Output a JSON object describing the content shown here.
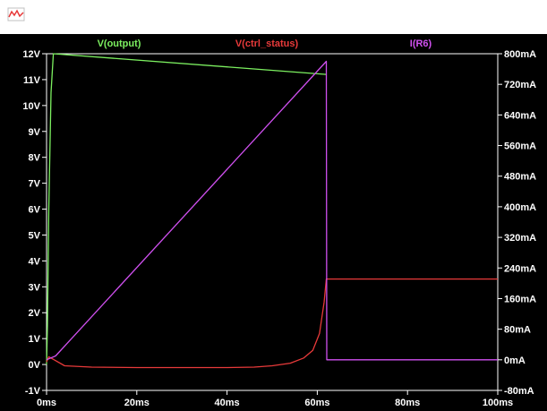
{
  "window": {
    "title": ""
  },
  "icons": {
    "app": "waveform-app-icon"
  },
  "colors": {
    "background": "#000000",
    "axis": "#ffffff",
    "output": "#7cf060",
    "ctrl_status": "#e83a3a",
    "r6": "#d050f0"
  },
  "chart_data": {
    "type": "line",
    "title": "",
    "xlabel": "",
    "ylabel": "",
    "xlim": [
      0,
      100
    ],
    "ylim_left": [
      -1,
      12
    ],
    "ylim_right": [
      -80,
      800
    ],
    "x_ticks": [
      "0ms",
      "20ms",
      "40ms",
      "60ms",
      "80ms",
      "100ms"
    ],
    "x_tick_values": [
      0,
      20,
      40,
      60,
      80,
      100
    ],
    "y_left_ticks": [
      "12V",
      "11V",
      "10V",
      "9V",
      "8V",
      "7V",
      "6V",
      "5V",
      "4V",
      "3V",
      "2V",
      "1V",
      "0V",
      "-1V"
    ],
    "y_left_tick_values": [
      12,
      11,
      10,
      9,
      8,
      7,
      6,
      5,
      4,
      3,
      2,
      1,
      0,
      -1
    ],
    "y_right_ticks": [
      "800mA",
      "720mA",
      "640mA",
      "560mA",
      "480mA",
      "400mA",
      "320mA",
      "240mA",
      "160mA",
      "80mA",
      "0mA",
      "-80mA"
    ],
    "y_right_tick_values": [
      800,
      720,
      640,
      560,
      480,
      400,
      320,
      240,
      160,
      80,
      0,
      -80
    ],
    "grid": false,
    "legend_position": "top",
    "series": [
      {
        "name": "V(output)",
        "axis": "left",
        "color": "#7cf060",
        "x": [
          0,
          0.2,
          0.5,
          1.0,
          1.5,
          62.0
        ],
        "y": [
          0,
          1.5,
          6.0,
          10.5,
          12.0,
          11.2
        ]
      },
      {
        "name": "V(ctrl_status)",
        "axis": "left",
        "color": "#e83a3a",
        "x": [
          0,
          0.5,
          1.5,
          4,
          10,
          20,
          30,
          40,
          46,
          50,
          54,
          57,
          59,
          60.5,
          61.5,
          62,
          62.1,
          100
        ],
        "y": [
          0.1,
          0.3,
          0.2,
          -0.05,
          -0.1,
          -0.12,
          -0.12,
          -0.12,
          -0.1,
          -0.05,
          0.05,
          0.25,
          0.55,
          1.2,
          2.4,
          3.3,
          3.3,
          3.3
        ]
      },
      {
        "name": "I(R6)",
        "axis": "right",
        "color": "#d050f0",
        "x": [
          0,
          2,
          62,
          62.1,
          100
        ],
        "y": [
          0,
          10,
          780,
          0,
          0
        ]
      }
    ]
  }
}
